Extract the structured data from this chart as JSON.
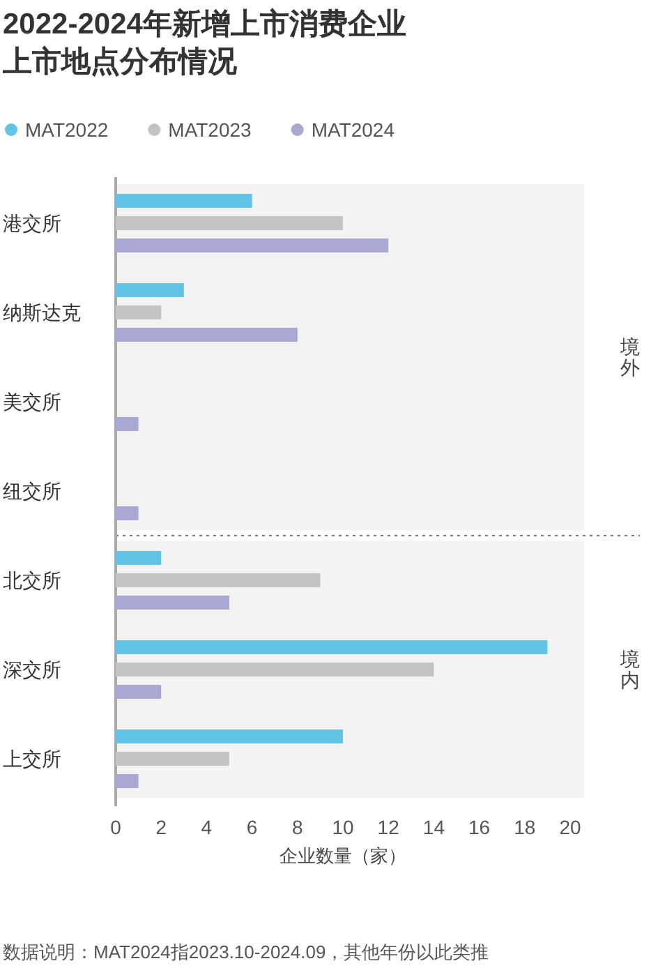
{
  "chart_data": {
    "type": "bar",
    "orientation": "horizontal",
    "title": "2022-2024年新增上市消费企业上市地点分布情况",
    "categories": [
      "港交所",
      "纳斯达克",
      "美交所",
      "纽交所",
      "北交所",
      "深交所",
      "上交所"
    ],
    "series": [
      {
        "name": "MAT2022",
        "color": "#62c3e4",
        "values": [
          6,
          3,
          0,
          0,
          2,
          19,
          10
        ]
      },
      {
        "name": "MAT2023",
        "color": "#c3c4c6",
        "values": [
          10,
          2,
          0,
          0,
          9,
          14,
          5
        ]
      },
      {
        "name": "MAT2024",
        "color": "#a8a8d3",
        "values": [
          12,
          8,
          1,
          1,
          5,
          2,
          1
        ]
      }
    ],
    "xlim": [
      0,
      20
    ],
    "xticks": [
      0,
      2,
      4,
      6,
      8,
      10,
      12,
      14,
      16,
      18,
      20
    ],
    "xlabel": "企业数量（家）",
    "bands": [
      {
        "axis": "y",
        "from": "港交所",
        "to": "纽交所",
        "label": "境外",
        "color": "#f3f3f3"
      },
      {
        "axis": "y",
        "from": "北交所",
        "to": "上交所",
        "label": "境内",
        "color": "#f3f3f3"
      }
    ],
    "legend": "top left",
    "annotations": [
      "数据说明：MAT2024指2023.10-2024.09，其他年份以此类推"
    ]
  }
}
